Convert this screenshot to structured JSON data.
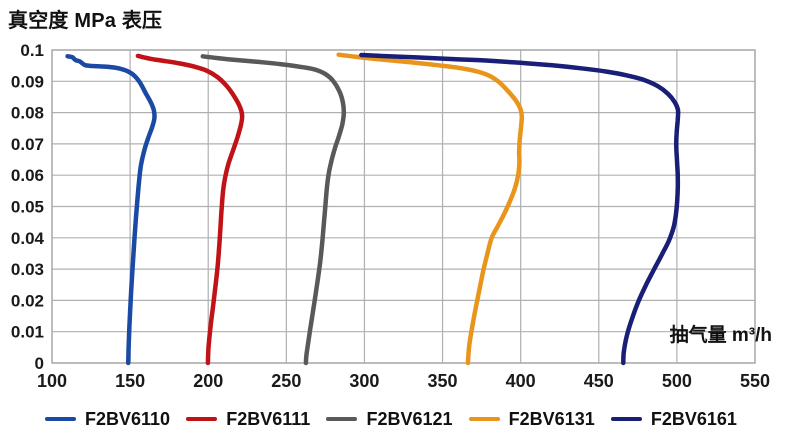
{
  "chart_data": {
    "type": "line",
    "title": "真空度 MPa 表压",
    "xlabel": "抽气量 m³/h",
    "ylabel": "真空度 MPa 表压",
    "xlim": [
      100,
      550
    ],
    "ylim": [
      0,
      0.1
    ],
    "xticks": [
      100,
      150,
      200,
      250,
      300,
      350,
      400,
      450,
      500,
      550
    ],
    "ytick_labels_top_to_bottom": [
      "0.1",
      "0.09",
      "0.08",
      "0.07",
      "0.06",
      "0.05",
      "0.04",
      "0.03",
      "0.02",
      "0.01",
      "0"
    ],
    "grid": true,
    "legend_position": "bottom",
    "colors": {
      "grid": "#b0b0b0",
      "plot_border": "#a8a8a8",
      "text": "#1a1a1a"
    },
    "series": [
      {
        "name": "F2BV6110",
        "color": "#1b4aa5",
        "points": [
          [
            110,
            0.098
          ],
          [
            113,
            0.0977
          ],
          [
            115,
            0.0968
          ],
          [
            118,
            0.0963
          ],
          [
            121,
            0.0952
          ],
          [
            126,
            0.0949
          ],
          [
            134,
            0.0947
          ],
          [
            141,
            0.0943
          ],
          [
            147,
            0.0935
          ],
          [
            152,
            0.0921
          ],
          [
            156,
            0.0898
          ],
          [
            160,
            0.0862
          ],
          [
            163.5,
            0.083
          ],
          [
            165.3,
            0.0805
          ],
          [
            165.5,
            0.078
          ],
          [
            164,
            0.0752
          ],
          [
            161.5,
            0.0718
          ],
          [
            159,
            0.0678
          ],
          [
            157,
            0.0633
          ],
          [
            155.8,
            0.0585
          ],
          [
            154.5,
            0.051
          ],
          [
            153.3,
            0.0435
          ],
          [
            152.3,
            0.036
          ],
          [
            151.3,
            0.028
          ],
          [
            150.3,
            0.0195
          ],
          [
            149.5,
            0.011
          ],
          [
            149,
            0.004
          ],
          [
            148.8,
            0
          ]
        ]
      },
      {
        "name": "F2BV6111",
        "color": "#c11317",
        "points": [
          [
            155,
            0.0981
          ],
          [
            163,
            0.0972
          ],
          [
            172,
            0.0965
          ],
          [
            182,
            0.0957
          ],
          [
            191,
            0.0947
          ],
          [
            199,
            0.0934
          ],
          [
            206,
            0.0913
          ],
          [
            212,
            0.0884
          ],
          [
            217,
            0.0849
          ],
          [
            220.5,
            0.0816
          ],
          [
            221.7,
            0.079
          ],
          [
            221,
            0.0762
          ],
          [
            218.8,
            0.0722
          ],
          [
            215.8,
            0.0678
          ],
          [
            212.8,
            0.0634
          ],
          [
            210.8,
            0.0592
          ],
          [
            209.5,
            0.055
          ],
          [
            208.6,
            0.0495
          ],
          [
            207.9,
            0.044
          ],
          [
            207.2,
            0.0385
          ],
          [
            206.2,
            0.0318
          ],
          [
            204.8,
            0.0252
          ],
          [
            203.2,
            0.0185
          ],
          [
            201.5,
            0.0118
          ],
          [
            200.2,
            0.005
          ],
          [
            199.8,
            0
          ]
        ]
      },
      {
        "name": "F2BV6121",
        "color": "#58595b",
        "points": [
          [
            196.5,
            0.098
          ],
          [
            206,
            0.0974
          ],
          [
            218,
            0.0968
          ],
          [
            232,
            0.0962
          ],
          [
            246,
            0.0955
          ],
          [
            258,
            0.0947
          ],
          [
            268,
            0.0938
          ],
          [
            275,
            0.0923
          ],
          [
            280,
            0.0901
          ],
          [
            284,
            0.0868
          ],
          [
            286.2,
            0.0832
          ],
          [
            286.8,
            0.0798
          ],
          [
            285.8,
            0.0762
          ],
          [
            283.5,
            0.0722
          ],
          [
            281,
            0.0685
          ],
          [
            279,
            0.0648
          ],
          [
            277.3,
            0.061
          ],
          [
            276.2,
            0.0572
          ],
          [
            275.2,
            0.0515
          ],
          [
            274.2,
            0.0455
          ],
          [
            273.2,
            0.0398
          ],
          [
            271.8,
            0.0328
          ],
          [
            270,
            0.0262
          ],
          [
            267.8,
            0.0188
          ],
          [
            265.3,
            0.0108
          ],
          [
            263,
            0.003
          ],
          [
            262.5,
            0
          ]
        ]
      },
      {
        "name": "F2BV6131",
        "color": "#e9951c",
        "points": [
          [
            283.5,
            0.0985
          ],
          [
            295,
            0.0978
          ],
          [
            310,
            0.097
          ],
          [
            327,
            0.0962
          ],
          [
            344,
            0.0953
          ],
          [
            359,
            0.0944
          ],
          [
            371,
            0.0933
          ],
          [
            379.5,
            0.0919
          ],
          [
            386,
            0.0898
          ],
          [
            392,
            0.0868
          ],
          [
            397,
            0.0838
          ],
          [
            399.8,
            0.0812
          ],
          [
            400.7,
            0.0788
          ],
          [
            400.2,
            0.0752
          ],
          [
            399.4,
            0.0712
          ],
          [
            399,
            0.0672
          ],
          [
            399.2,
            0.0638
          ],
          [
            398.3,
            0.0598
          ],
          [
            396.3,
            0.0558
          ],
          [
            393,
            0.0515
          ],
          [
            388.8,
            0.047
          ],
          [
            384.8,
            0.0432
          ],
          [
            381.3,
            0.0398
          ],
          [
            378.3,
            0.0342
          ],
          [
            375.5,
            0.0282
          ],
          [
            372.8,
            0.0215
          ],
          [
            369.8,
            0.0138
          ],
          [
            367.2,
            0.006
          ],
          [
            366.2,
            0
          ]
        ]
      },
      {
        "name": "F2BV6161",
        "color": "#191f77",
        "points": [
          [
            298,
            0.0984
          ],
          [
            315,
            0.098
          ],
          [
            335,
            0.0976
          ],
          [
            357,
            0.0971
          ],
          [
            379,
            0.0966
          ],
          [
            400,
            0.0959
          ],
          [
            420,
            0.0951
          ],
          [
            438,
            0.0942
          ],
          [
            455,
            0.0931
          ],
          [
            468,
            0.0919
          ],
          [
            479,
            0.0904
          ],
          [
            488,
            0.0884
          ],
          [
            494.5,
            0.0859
          ],
          [
            498.8,
            0.0832
          ],
          [
            500.7,
            0.0808
          ],
          [
            500.5,
            0.0775
          ],
          [
            499.8,
            0.0732
          ],
          [
            499.6,
            0.0692
          ],
          [
            500,
            0.0652
          ],
          [
            500.5,
            0.0605
          ],
          [
            500.6,
            0.0562
          ],
          [
            500.2,
            0.0518
          ],
          [
            499.3,
            0.0472
          ],
          [
            497.8,
            0.0432
          ],
          [
            495,
            0.0392
          ],
          [
            491,
            0.0352
          ],
          [
            486,
            0.0305
          ],
          [
            480.5,
            0.0252
          ],
          [
            475.5,
            0.0198
          ],
          [
            471.3,
            0.0142
          ],
          [
            468,
            0.0088
          ],
          [
            466,
            0.0035
          ],
          [
            465.7,
            0
          ]
        ]
      }
    ]
  }
}
